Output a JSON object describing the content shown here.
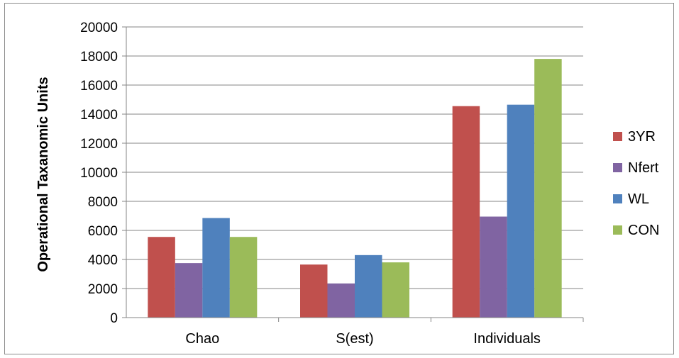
{
  "chart_data": {
    "type": "bar",
    "title": "",
    "xlabel": "",
    "ylabel": "Operational Taxanomic Units",
    "categories": [
      "Chao",
      "S(est)",
      "Individuals"
    ],
    "series": [
      {
        "name": "3YR",
        "color": "#c0504d",
        "values": [
          5550,
          3650,
          14550
        ]
      },
      {
        "name": "Nfert",
        "color": "#8064a2",
        "values": [
          3750,
          2350,
          6950
        ]
      },
      {
        "name": "WL",
        "color": "#4f81bd",
        "values": [
          6850,
          4300,
          14650
        ]
      },
      {
        "name": "CON",
        "color": "#9bbb59",
        "values": [
          5550,
          3800,
          17800
        ]
      }
    ],
    "ylim": [
      0,
      20000
    ],
    "yticks": [
      0,
      2000,
      4000,
      6000,
      8000,
      10000,
      12000,
      14000,
      16000,
      18000,
      20000
    ],
    "grid": true,
    "legend_position": "right",
    "gridline_color": "#868686",
    "axis_color": "#868686"
  }
}
